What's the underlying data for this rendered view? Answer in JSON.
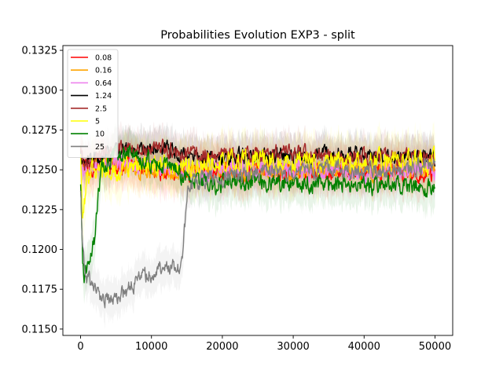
{
  "chart_data": {
    "type": "line",
    "title": "Probabilities Evolution EXP3  - split",
    "xlabel": "",
    "ylabel": "",
    "xlim": [
      -2500,
      52500
    ],
    "ylim": [
      0.1146,
      0.1328
    ],
    "x_ticks": [
      0,
      10000,
      20000,
      30000,
      40000,
      50000
    ],
    "x_tick_labels": [
      "0",
      "10000",
      "20000",
      "30000",
      "40000",
      "50000"
    ],
    "y_ticks": [
      0.115,
      0.1175,
      0.12,
      0.1225,
      0.125,
      0.1275,
      0.13,
      0.1325
    ],
    "y_tick_labels": [
      "0.1150",
      "0.1175",
      "0.1200",
      "0.1225",
      "0.1250",
      "0.1275",
      "0.1300",
      "0.1325"
    ],
    "grid": false,
    "legend_position": "top-left",
    "series": [
      {
        "name": "0.08",
        "color": "#ff0000",
        "x": [
          0,
          500,
          1000,
          2000,
          3000,
          5000,
          8000,
          12000,
          15000,
          20000,
          30000,
          40000,
          50000
        ],
        "y": [
          0.1262,
          0.125,
          0.1253,
          0.1252,
          0.1254,
          0.1253,
          0.1252,
          0.125,
          0.1249,
          0.1249,
          0.1248,
          0.1248,
          0.1248
        ],
        "noise": 0.001
      },
      {
        "name": "0.16",
        "color": "#ffa500",
        "x": [
          0,
          500,
          1000,
          2000,
          3000,
          5000,
          8000,
          12000,
          15000,
          20000,
          30000,
          40000,
          50000
        ],
        "y": [
          0.1255,
          0.125,
          0.1252,
          0.1253,
          0.1254,
          0.1254,
          0.1252,
          0.125,
          0.125,
          0.1249,
          0.1249,
          0.125,
          0.125
        ],
        "noise": 0.001
      },
      {
        "name": "0.64",
        "color": "#ee82ee",
        "x": [
          0,
          500,
          1000,
          2000,
          3000,
          5000,
          8000,
          12000,
          15000,
          20000,
          30000,
          40000,
          50000
        ],
        "y": [
          0.1258,
          0.125,
          0.1252,
          0.1253,
          0.1255,
          0.1256,
          0.1254,
          0.1251,
          0.125,
          0.125,
          0.125,
          0.1249,
          0.125
        ],
        "noise": 0.001
      },
      {
        "name": "1.24",
        "color": "#000000",
        "x": [
          0,
          500,
          1000,
          2000,
          3000,
          5000,
          8000,
          12000,
          15000,
          20000,
          30000,
          40000,
          50000
        ],
        "y": [
          0.126,
          0.1252,
          0.1255,
          0.1257,
          0.126,
          0.1262,
          0.1263,
          0.1262,
          0.126,
          0.1258,
          0.1259,
          0.126,
          0.1258
        ],
        "noise": 0.0009
      },
      {
        "name": "2.5",
        "color": "#a52a2a",
        "x": [
          0,
          500,
          1000,
          2000,
          3000,
          5000,
          8000,
          12000,
          15000,
          20000,
          30000,
          40000,
          50000
        ],
        "y": [
          0.1262,
          0.125,
          0.1254,
          0.1257,
          0.126,
          0.1262,
          0.1264,
          0.1263,
          0.1261,
          0.1259,
          0.126,
          0.1258,
          0.1258
        ],
        "noise": 0.0009
      },
      {
        "name": "5",
        "color": "#ffff00",
        "x": [
          0,
          300,
          800,
          1500,
          2500,
          3500,
          5000,
          7000,
          9000,
          12000,
          15000,
          20000,
          30000,
          40000,
          50000
        ],
        "y": [
          0.1255,
          0.1215,
          0.1245,
          0.1252,
          0.125,
          0.1248,
          0.1249,
          0.1252,
          0.1254,
          0.1253,
          0.1252,
          0.1254,
          0.1256,
          0.1254,
          0.1255
        ],
        "noise": 0.0012
      },
      {
        "name": "10",
        "color": "#008000",
        "x": [
          0,
          300,
          600,
          1000,
          1500,
          2000,
          2500,
          3000,
          4000,
          5000,
          7000,
          9000,
          12000,
          15000,
          18000,
          25000,
          35000,
          45000,
          50000
        ],
        "y": [
          0.1245,
          0.119,
          0.1182,
          0.119,
          0.1198,
          0.1205,
          0.1235,
          0.125,
          0.1258,
          0.1262,
          0.1262,
          0.1256,
          0.1252,
          0.1245,
          0.124,
          0.1242,
          0.1241,
          0.124,
          0.1238
        ],
        "noise": 0.001
      },
      {
        "name": "25",
        "color": "#808080",
        "x": [
          0,
          300,
          700,
          1500,
          2500,
          4000,
          6000,
          8000,
          10000,
          12000,
          14000,
          14500,
          15000,
          16000,
          18000,
          25000,
          35000,
          45000,
          50000
        ],
        "y": [
          0.124,
          0.12,
          0.1182,
          0.1178,
          0.117,
          0.1168,
          0.1172,
          0.118,
          0.1186,
          0.119,
          0.1188,
          0.12,
          0.1235,
          0.1242,
          0.1245,
          0.1248,
          0.125,
          0.125,
          0.1252
        ],
        "noise": 0.0009
      }
    ]
  }
}
